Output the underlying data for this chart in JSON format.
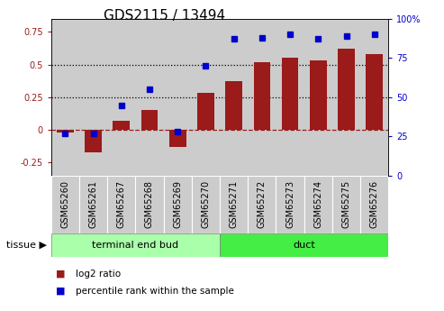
{
  "title": "GDS2115 / 13494",
  "samples": [
    "GSM65260",
    "GSM65261",
    "GSM65267",
    "GSM65268",
    "GSM65269",
    "GSM65270",
    "GSM65271",
    "GSM65272",
    "GSM65273",
    "GSM65274",
    "GSM65275",
    "GSM65276"
  ],
  "log2_ratio": [
    -0.02,
    -0.17,
    0.07,
    0.15,
    -0.13,
    0.28,
    0.37,
    0.52,
    0.55,
    0.53,
    0.62,
    0.58
  ],
  "percentile_rank": [
    27,
    27,
    45,
    55,
    28,
    70,
    87,
    88,
    90,
    87,
    89,
    90
  ],
  "groups": [
    {
      "label": "terminal end bud",
      "start": 0,
      "end": 6
    },
    {
      "label": "duct",
      "start": 6,
      "end": 12
    }
  ],
  "group_colors": [
    "#aaffaa",
    "#44ee44"
  ],
  "bar_color": "#9b1a1a",
  "dot_color": "#0000cc",
  "ylim_left": [
    -0.35,
    0.85
  ],
  "ylim_right": [
    0,
    100
  ],
  "yticks_left": [
    -0.25,
    0.0,
    0.25,
    0.5,
    0.75
  ],
  "yticks_right": [
    0,
    25,
    50,
    75,
    100
  ],
  "hlines": [
    0.25,
    0.5
  ],
  "hline_zero": 0.0,
  "title_fontsize": 11,
  "tick_fontsize": 7,
  "label_fontsize": 8,
  "tissue_label": "tissue",
  "legend_items": [
    {
      "label": "log2 ratio",
      "color": "#9b1a1a"
    },
    {
      "label": "percentile rank within the sample",
      "color": "#0000cc"
    }
  ],
  "col_bg_color": "#cccccc",
  "col_edge_color": "#ffffff",
  "bar_width": 0.6,
  "dot_size": 5
}
